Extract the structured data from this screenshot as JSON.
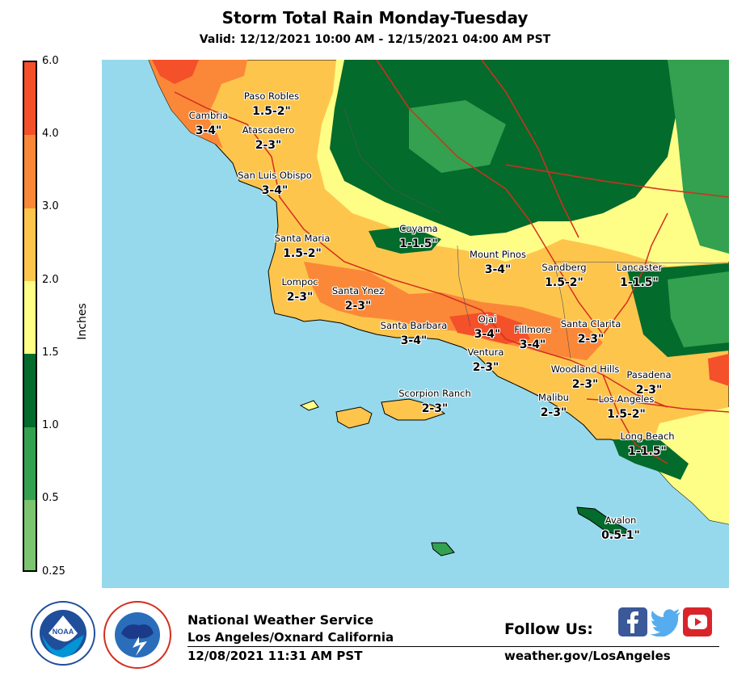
{
  "header": {
    "title": "Storm Total Rain Monday-Tuesday",
    "subtitle": "Valid: 12/12/2021 10:00 AM - 12/15/2021 04:00 AM PST"
  },
  "legend": {
    "label": "Inches",
    "ticks": [
      "6.0",
      "4.0",
      "3.0",
      "2.0",
      "1.5",
      "1.0",
      "0.5",
      "0.25"
    ],
    "bins": [
      {
        "range": "4.0-6.0",
        "color": "#f4502a"
      },
      {
        "range": "3.0-4.0",
        "color": "#fb8838"
      },
      {
        "range": "2.0-3.0",
        "color": "#fec54d"
      },
      {
        "range": "1.5-2.0",
        "color": "#fefd86"
      },
      {
        "range": "1.0-1.5",
        "color": "#036b2b"
      },
      {
        "range": "0.5-1.0",
        "color": "#33a14f"
      },
      {
        "range": "0.25-0.5",
        "color": "#7bc470"
      }
    ]
  },
  "map": {
    "ocean_color": "#96d9ec",
    "cities": [
      {
        "name": "Paso Robles",
        "amount": "1.5-2\""
      },
      {
        "name": "Cambria",
        "amount": "3-4\""
      },
      {
        "name": "Atascadero",
        "amount": "2-3\""
      },
      {
        "name": "San Luis Obispo",
        "amount": "3-4\""
      },
      {
        "name": "Cuyama",
        "amount": "1-1.5\""
      },
      {
        "name": "Santa Maria",
        "amount": "1.5-2\""
      },
      {
        "name": "Mount Pinos",
        "amount": "3-4\""
      },
      {
        "name": "Lompoc",
        "amount": "2-3\""
      },
      {
        "name": "Santa Ynez",
        "amount": "2-3\""
      },
      {
        "name": "Sandberg",
        "amount": "1.5-2\""
      },
      {
        "name": "Lancaster",
        "amount": "1-1.5\""
      },
      {
        "name": "Santa Barbara",
        "amount": "3-4\""
      },
      {
        "name": "Ojai",
        "amount": "3-4\""
      },
      {
        "name": "Fillmore",
        "amount": "3-4\""
      },
      {
        "name": "Santa Clarita",
        "amount": "2-3\""
      },
      {
        "name": "Ventura",
        "amount": "2-3\""
      },
      {
        "name": "Woodland Hills",
        "amount": "2-3\""
      },
      {
        "name": "Pasadena",
        "amount": "2-3\""
      },
      {
        "name": "Scorpion Ranch",
        "amount": "2-3\""
      },
      {
        "name": "Malibu",
        "amount": "2-3\""
      },
      {
        "name": "Los Angeles",
        "amount": "1.5-2\""
      },
      {
        "name": "Long Beach",
        "amount": "1-1.5\""
      },
      {
        "name": "Avalon",
        "amount": "0.5-1\""
      }
    ]
  },
  "footer": {
    "org": "National Weather Service",
    "office": "Los Angeles/Oxnard California",
    "issued": "12/08/2021 11:31 AM PST",
    "follow": "Follow Us:",
    "website": "weather.gov/LosAngeles",
    "logos": [
      "noaa-logo",
      "nws-logo"
    ],
    "social": [
      {
        "icon": "facebook-icon",
        "color": "#3b5998"
      },
      {
        "icon": "twitter-icon",
        "color": "#55acee"
      },
      {
        "icon": "youtube-icon",
        "color": "#d9252a"
      }
    ]
  }
}
